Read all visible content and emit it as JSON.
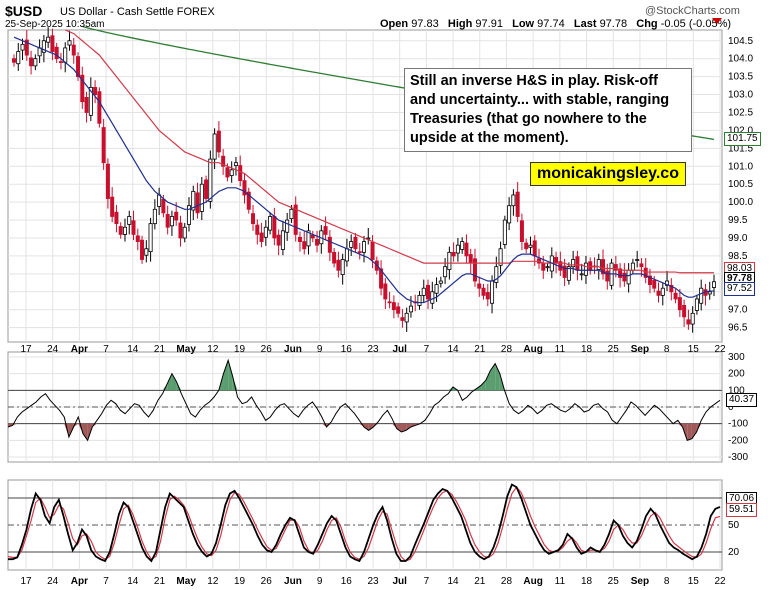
{
  "header": {
    "symbol": "$USD",
    "description": "US Dollar - Cash Settle FOREX",
    "datetime": "25-Sep-2025 10:35am",
    "open_label": "Open",
    "open": "97.83",
    "high_label": "High",
    "high": "97.91",
    "low_label": "Low",
    "low": "97.74",
    "last_label": "Last",
    "last": "97.78",
    "chg_label": "Chg",
    "chg": "-0.05 (-0.05%)",
    "watermark_logo": "@StockCharts.com"
  },
  "annotation": {
    "text": "Still an inverse H&S in play. Risk-off and uncertainty... with stable, ranging Treasuries (that go nowhere to the upside at the moment).",
    "brand": "monicakingsley.co"
  },
  "colors": {
    "up": "#000000",
    "down": "#c8102e",
    "ma_short": "#1f2f8f",
    "ma_mid": "#d23a4a",
    "ma_long": "#2e7d32",
    "fill_green": "#5a9e6f",
    "fill_red": "#a05a5a",
    "grid": "#e3e3e3"
  },
  "tags": {
    "ma_long": "101.75",
    "ma_mid": "98.03",
    "last": "97.78",
    "ma_short": "97.52",
    "osc1": "40.37",
    "osc2_k": "70.06",
    "osc2_d": "59.51"
  },
  "chart_data": [
    {
      "type": "candlestick",
      "yscale_ticks": [
        "104.5",
        "104.0",
        "103.5",
        "103.0",
        "102.5",
        "102.0",
        "101.5",
        "101.0",
        "100.5",
        "100.0",
        "99.5",
        "99.0",
        "98.5",
        "98.0",
        "97.5",
        "97.0",
        "96.5"
      ],
      "ylim": [
        96.1,
        104.8
      ],
      "x_tick_labels": [
        "17",
        "24",
        "Apr",
        "7",
        "14",
        "21",
        "May",
        "12",
        "19",
        "26",
        "Jun",
        "9",
        "16",
        "23",
        "Jul",
        "7",
        "14",
        "21",
        "28",
        "Aug",
        "11",
        "18",
        "25",
        "Sep",
        "8",
        "15",
        "22"
      ],
      "close": [
        103.9,
        104.2,
        104.4,
        104.1,
        103.8,
        104.0,
        104.3,
        104.5,
        104.6,
        104.2,
        104.0,
        103.9,
        104.3,
        104.5,
        104.1,
        103.5,
        102.8,
        102.5,
        103.2,
        103.0,
        102.2,
        101.1,
        100.1,
        99.6,
        99.4,
        99.1,
        99.3,
        99.6,
        99.1,
        98.9,
        98.4,
        98.7,
        99.4,
        99.8,
        100.2,
        99.7,
        99.3,
        99.6,
        99.5,
        99.0,
        99.3,
        99.9,
        100.3,
        99.7,
        100.5,
        100.1,
        101.2,
        101.9,
        101.4,
        101.0,
        100.7,
        100.9,
        101.1,
        100.6,
        100.2,
        99.8,
        99.4,
        99.1,
        98.9,
        99.3,
        99.6,
        99.0,
        98.8,
        99.2,
        99.5,
        99.8,
        99.1,
        98.9,
        98.7,
        99.2,
        99.0,
        98.8,
        99.2,
        99.1,
        98.6,
        98.3,
        98.1,
        98.4,
        98.7,
        98.9,
        98.7,
        98.6,
        98.9,
        99.0,
        98.4,
        98.1,
        97.6,
        97.3,
        97.2,
        97.0,
        96.9,
        96.7,
        96.9,
        97.1,
        97.2,
        97.4,
        97.6,
        97.3,
        97.5,
        97.7,
        97.8,
        98.2,
        98.6,
        98.5,
        98.8,
        98.9,
        98.5,
        98.3,
        97.8,
        97.6,
        97.4,
        97.3,
        97.8,
        98.2,
        98.7,
        99.5,
        99.9,
        100.2,
        99.6,
        98.9,
        98.7,
        98.8,
        98.5,
        98.3,
        98.1,
        98.2,
        98.5,
        98.3,
        98.1,
        97.9,
        98.2,
        98.4,
        98.1,
        98.0,
        98.3,
        98.1,
        98.2,
        98.4,
        98.0,
        97.8,
        98.3,
        98.1,
        97.9,
        97.8,
        98.1,
        98.3,
        98.4,
        98.2,
        97.9,
        97.7,
        97.6,
        97.4,
        97.6,
        97.8,
        97.5,
        97.3,
        97.0,
        96.8,
        96.6,
        96.9,
        97.3,
        97.6,
        97.4,
        97.5,
        97.78
      ],
      "ma_short": [
        104.6,
        104.55,
        104.5,
        104.45,
        104.4,
        104.35,
        104.3,
        104.25,
        104.2,
        104.15,
        104.1,
        104.0,
        103.9,
        103.8,
        103.7,
        103.55,
        103.4,
        103.25,
        103.1,
        102.95,
        102.8,
        102.6,
        102.4,
        102.2,
        102.0,
        101.8,
        101.6,
        101.4,
        101.2,
        101.0,
        100.8,
        100.6,
        100.45,
        100.3,
        100.2,
        100.1,
        100.0,
        99.95,
        99.9,
        99.85,
        99.8,
        99.8,
        99.85,
        99.9,
        99.95,
        100.0,
        100.1,
        100.2,
        100.3,
        100.35,
        100.4,
        100.4,
        100.4,
        100.35,
        100.3,
        100.2,
        100.1,
        100.0,
        99.9,
        99.8,
        99.7,
        99.6,
        99.5,
        99.45,
        99.4,
        99.35,
        99.3,
        99.25,
        99.2,
        99.15,
        99.1,
        99.05,
        99.0,
        98.95,
        98.9,
        98.85,
        98.8,
        98.75,
        98.7,
        98.65,
        98.6,
        98.55,
        98.5,
        98.45,
        98.35,
        98.25,
        98.1,
        97.95,
        97.8,
        97.65,
        97.5,
        97.4,
        97.3,
        97.25,
        97.2,
        97.2,
        97.2,
        97.25,
        97.3,
        97.35,
        97.45,
        97.55,
        97.65,
        97.75,
        97.85,
        97.95,
        98.0,
        98.0,
        97.95,
        97.9,
        97.85,
        97.8,
        97.8,
        97.85,
        97.95,
        98.1,
        98.25,
        98.4,
        98.5,
        98.55,
        98.55,
        98.55,
        98.5,
        98.45,
        98.4,
        98.35,
        98.3,
        98.25,
        98.2,
        98.15,
        98.15,
        98.15,
        98.1,
        98.1,
        98.1,
        98.1,
        98.1,
        98.1,
        98.05,
        98.0,
        98.0,
        98.0,
        97.95,
        97.95,
        97.95,
        98.0,
        98.0,
        98.0,
        97.95,
        97.9,
        97.85,
        97.8,
        97.75,
        97.7,
        97.65,
        97.6,
        97.5,
        97.4,
        97.35,
        97.35,
        97.4,
        97.45,
        97.5,
        97.52,
        97.52
      ],
      "ma_mid": [
        null,
        null,
        null,
        null,
        null,
        null,
        null,
        null,
        null,
        null,
        null,
        null,
        104.8,
        104.75,
        104.7,
        104.6,
        104.5,
        104.4,
        104.3,
        104.2,
        104.1,
        103.95,
        103.8,
        103.65,
        103.5,
        103.35,
        103.2,
        103.05,
        102.9,
        102.75,
        102.6,
        102.45,
        102.3,
        102.15,
        102.0,
        101.9,
        101.8,
        101.7,
        101.6,
        101.5,
        101.4,
        101.35,
        101.3,
        101.25,
        101.2,
        101.15,
        101.1,
        101.1,
        101.1,
        101.05,
        101.0,
        100.95,
        100.9,
        100.85,
        100.8,
        100.7,
        100.6,
        100.5,
        100.4,
        100.3,
        100.2,
        100.1,
        100.0,
        99.95,
        99.9,
        99.85,
        99.8,
        99.75,
        99.7,
        99.65,
        99.6,
        99.55,
        99.5,
        99.45,
        99.4,
        99.35,
        99.3,
        99.25,
        99.2,
        99.15,
        99.1,
        99.05,
        99.0,
        98.95,
        98.9,
        98.85,
        98.8,
        98.75,
        98.7,
        98.65,
        98.6,
        98.55,
        98.5,
        98.45,
        98.4,
        98.35,
        98.3,
        98.3,
        98.3,
        98.3,
        98.3,
        98.3,
        98.3,
        98.3,
        98.3,
        98.3,
        98.3,
        98.3,
        98.3,
        98.3,
        98.3,
        98.3,
        98.3,
        98.3,
        98.3,
        98.3,
        98.3,
        98.35,
        98.35,
        98.35,
        98.35,
        98.35,
        98.35,
        98.35,
        98.3,
        98.3,
        98.3,
        98.3,
        98.3,
        98.3,
        98.25,
        98.25,
        98.25,
        98.25,
        98.2,
        98.2,
        98.2,
        98.2,
        98.15,
        98.15,
        98.15,
        98.15,
        98.1,
        98.1,
        98.1,
        98.1,
        98.1,
        98.1,
        98.05,
        98.05,
        98.05,
        98.05,
        98.05,
        98.05,
        98.05,
        98.05,
        98.03,
        98.03,
        98.03,
        98.03,
        98.03,
        98.03,
        98.03,
        98.03,
        98.03
      ],
      "ma_long": {
        "start_value": 104.9,
        "end_value": 101.75,
        "start_index": 16
      }
    },
    {
      "type": "line",
      "name": "CCI",
      "yscale_ticks": [
        "300",
        "200",
        "100",
        "0",
        "-100",
        "-200",
        "-300"
      ],
      "ylim": [
        -330,
        330
      ],
      "reference_lines": [
        100,
        0,
        -100
      ],
      "values": [
        -120,
        -110,
        -60,
        -30,
        -10,
        10,
        30,
        60,
        80,
        40,
        10,
        -20,
        -60,
        -180,
        -120,
        -60,
        -160,
        -200,
        -120,
        -80,
        -40,
        10,
        40,
        20,
        -20,
        -40,
        -10,
        20,
        10,
        -30,
        -60,
        -20,
        40,
        80,
        140,
        200,
        150,
        80,
        20,
        -40,
        -60,
        -20,
        10,
        30,
        60,
        100,
        200,
        280,
        180,
        60,
        20,
        30,
        60,
        10,
        -30,
        -80,
        -60,
        -20,
        10,
        20,
        -10,
        -40,
        -60,
        -20,
        10,
        30,
        -10,
        -60,
        -120,
        -90,
        -40,
        0,
        20,
        -10,
        -40,
        -80,
        -120,
        -140,
        -120,
        -90,
        -50,
        -20,
        -70,
        -130,
        -150,
        -140,
        -120,
        -110,
        -100,
        -80,
        -40,
        10,
        30,
        60,
        80,
        120,
        100,
        40,
        60,
        90,
        110,
        130,
        160,
        220,
        260,
        200,
        100,
        20,
        -20,
        -40,
        -20,
        10,
        -10,
        -40,
        -20,
        10,
        20,
        0,
        -20,
        -30,
        -10,
        20,
        0,
        -30,
        -20,
        10,
        20,
        -10,
        -30,
        -80,
        -100,
        -60,
        -20,
        30,
        10,
        -20,
        -50,
        -20,
        10,
        -10,
        -40,
        -70,
        -100,
        -80,
        -120,
        -200,
        -190,
        -150,
        -80,
        -30,
        0,
        20,
        40.37
      ],
      "last": 40.37
    },
    {
      "type": "line",
      "name": "Stochastic",
      "yscale_ticks": [
        "80",
        "50",
        "20"
      ],
      "ylim": [
        0,
        100
      ],
      "reference_lines": [
        80,
        50,
        20
      ],
      "series": [
        {
          "name": "%K",
          "values": [
            12,
            12,
            14,
            28,
            45,
            68,
            85,
            78,
            60,
            52,
            70,
            78,
            60,
            40,
            22,
            30,
            45,
            38,
            22,
            15,
            12,
            10,
            20,
            40,
            62,
            75,
            70,
            55,
            40,
            25,
            15,
            10,
            20,
            45,
            70,
            85,
            80,
            75,
            70,
            55,
            40,
            28,
            20,
            15,
            18,
            30,
            50,
            72,
            85,
            88,
            80,
            70,
            60,
            50,
            38,
            28,
            22,
            20,
            28,
            40,
            50,
            58,
            55,
            40,
            25,
            20,
            18,
            28,
            40,
            52,
            60,
            55,
            40,
            25,
            15,
            12,
            10,
            20,
            35,
            50,
            62,
            70,
            55,
            35,
            18,
            10,
            10,
            15,
            28,
            40,
            52,
            65,
            78,
            85,
            90,
            88,
            80,
            70,
            60,
            45,
            30,
            20,
            15,
            12,
            15,
            25,
            40,
            60,
            82,
            95,
            92,
            80,
            65,
            50,
            40,
            30,
            22,
            18,
            20,
            22,
            28,
            40,
            35,
            25,
            18,
            20,
            25,
            22,
            20,
            28,
            40,
            55,
            50,
            38,
            30,
            25,
            32,
            45,
            60,
            68,
            62,
            50,
            40,
            30,
            25,
            22,
            18,
            15,
            12,
            15,
            25,
            40,
            60,
            68,
            70.06
          ]
        },
        {
          "name": "%D",
          "values": [
            15,
            14,
            14,
            22,
            38,
            55,
            75,
            80,
            70,
            58,
            62,
            72,
            68,
            52,
            35,
            28,
            38,
            40,
            32,
            20,
            15,
            12,
            15,
            30,
            50,
            68,
            72,
            62,
            48,
            32,
            20,
            12,
            15,
            32,
            58,
            78,
            82,
            78,
            72,
            62,
            48,
            35,
            25,
            18,
            16,
            22,
            38,
            60,
            78,
            86,
            84,
            76,
            66,
            56,
            45,
            35,
            26,
            22,
            24,
            34,
            45,
            55,
            56,
            48,
            32,
            22,
            18,
            22,
            32,
            45,
            55,
            58,
            48,
            32,
            20,
            14,
            12,
            15,
            25,
            40,
            55,
            65,
            62,
            45,
            28,
            15,
            10,
            12,
            20,
            32,
            45,
            58,
            70,
            80,
            86,
            88,
            84,
            76,
            66,
            55,
            40,
            28,
            20,
            15,
            14,
            18,
            30,
            48,
            68,
            85,
            92,
            86,
            74,
            60,
            48,
            38,
            28,
            22,
            20,
            21,
            25,
            32,
            36,
            30,
            22,
            20,
            22,
            22,
            21,
            24,
            32,
            45,
            50,
            45,
            36,
            30,
            30,
            38,
            50,
            60,
            64,
            58,
            48,
            38,
            30,
            26,
            22,
            18,
            15,
            14,
            18,
            30,
            46,
            58,
            59.51
          ]
        }
      ],
      "last_k": 70.06,
      "last_d": 59.51
    }
  ]
}
